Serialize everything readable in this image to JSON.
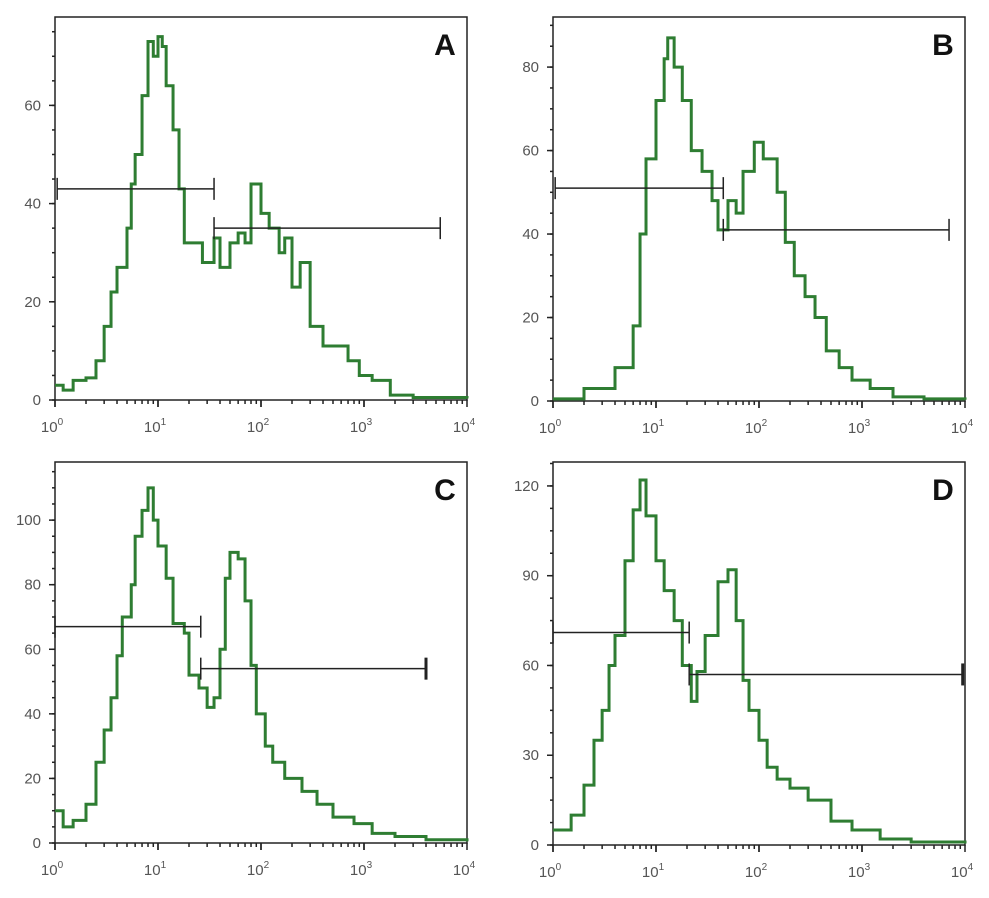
{
  "chart_data": [
    {
      "type": "line",
      "panel_label": "A",
      "x_scale": "log",
      "xlim": [
        1,
        10000
      ],
      "x_ticks": [
        "0",
        "1",
        "2",
        "3",
        "4"
      ],
      "x_tick_base": "10",
      "ylim": [
        0,
        78
      ],
      "y_ticks": [
        0,
        20,
        40,
        60
      ],
      "line_color": "#2e7d32",
      "series": [
        {
          "points": [
            [
              1,
              3
            ],
            [
              1.2,
              2
            ],
            [
              1.5,
              4
            ],
            [
              2,
              4.5
            ],
            [
              2.5,
              8
            ],
            [
              3,
              15
            ],
            [
              3.5,
              22
            ],
            [
              4,
              27
            ],
            [
              5,
              35
            ],
            [
              5.5,
              44
            ],
            [
              6,
              50
            ],
            [
              7,
              62
            ],
            [
              8,
              73
            ],
            [
              9,
              70
            ],
            [
              10,
              74
            ],
            [
              11,
              72
            ],
            [
              12,
              64
            ],
            [
              14,
              55
            ],
            [
              16,
              43
            ],
            [
              18,
              32
            ],
            [
              22,
              32
            ],
            [
              27,
              28
            ],
            [
              35,
              33
            ],
            [
              40,
              27
            ],
            [
              50,
              32
            ],
            [
              60,
              34
            ],
            [
              70,
              32
            ],
            [
              80,
              44
            ],
            [
              100,
              38
            ],
            [
              120,
              35
            ],
            [
              150,
              30
            ],
            [
              170,
              33
            ],
            [
              200,
              23
            ],
            [
              240,
              28
            ],
            [
              300,
              15
            ],
            [
              400,
              11
            ],
            [
              500,
              11
            ],
            [
              700,
              8
            ],
            [
              900,
              5
            ],
            [
              1200,
              4
            ],
            [
              1800,
              1
            ],
            [
              3000,
              0.5
            ],
            [
              10000,
              0.3
            ]
          ]
        }
      ],
      "gates": [
        {
          "x": [
            1.05,
            35
          ],
          "y": 43
        },
        {
          "x": [
            35,
            5500
          ],
          "y": 35
        }
      ]
    },
    {
      "type": "line",
      "panel_label": "B",
      "x_scale": "log",
      "xlim": [
        1,
        10000
      ],
      "x_ticks": [
        "0",
        "1",
        "2",
        "3",
        "4"
      ],
      "x_tick_base": "10",
      "ylim": [
        0,
        92
      ],
      "y_ticks": [
        0,
        20,
        40,
        60,
        80
      ],
      "line_color": "#2e7d32",
      "series": [
        {
          "points": [
            [
              1,
              0.5
            ],
            [
              2,
              3
            ],
            [
              4,
              8
            ],
            [
              6,
              18
            ],
            [
              7,
              40
            ],
            [
              8,
              58
            ],
            [
              10,
              72
            ],
            [
              12,
              82
            ],
            [
              13,
              87
            ],
            [
              15,
              80
            ],
            [
              18,
              72
            ],
            [
              22,
              60
            ],
            [
              28,
              55
            ],
            [
              35,
              48
            ],
            [
              40,
              41
            ],
            [
              50,
              48
            ],
            [
              60,
              45
            ],
            [
              70,
              55
            ],
            [
              90,
              62
            ],
            [
              110,
              58
            ],
            [
              150,
              50
            ],
            [
              180,
              38
            ],
            [
              220,
              30
            ],
            [
              280,
              25
            ],
            [
              350,
              20
            ],
            [
              450,
              12
            ],
            [
              600,
              8
            ],
            [
              800,
              5
            ],
            [
              1200,
              3
            ],
            [
              2000,
              1
            ],
            [
              4000,
              0.5
            ],
            [
              10000,
              0.3
            ]
          ]
        }
      ],
      "gates": [
        {
          "x": [
            1.05,
            45
          ],
          "y": 51
        },
        {
          "x": [
            45,
            7000
          ],
          "y": 41
        }
      ]
    },
    {
      "type": "line",
      "panel_label": "C",
      "x_scale": "log",
      "xlim": [
        1,
        10000
      ],
      "x_ticks": [
        "0",
        "1",
        "2",
        "3",
        "4"
      ],
      "x_tick_base": "10",
      "ylim": [
        0,
        118
      ],
      "y_ticks": [
        0,
        20,
        40,
        60,
        80,
        100
      ],
      "line_color": "#2e7d32",
      "series": [
        {
          "points": [
            [
              1,
              10
            ],
            [
              1.2,
              5
            ],
            [
              1.5,
              7
            ],
            [
              2,
              12
            ],
            [
              2.5,
              25
            ],
            [
              3,
              35
            ],
            [
              3.5,
              45
            ],
            [
              4,
              58
            ],
            [
              4.5,
              70
            ],
            [
              5.5,
              80
            ],
            [
              6,
              95
            ],
            [
              7,
              103
            ],
            [
              8,
              110
            ],
            [
              9,
              100
            ],
            [
              10,
              92
            ],
            [
              12,
              82
            ],
            [
              14,
              68
            ],
            [
              18,
              65
            ],
            [
              20,
              52
            ],
            [
              25,
              48
            ],
            [
              30,
              42
            ],
            [
              35,
              45
            ],
            [
              40,
              60
            ],
            [
              45,
              82
            ],
            [
              50,
              90
            ],
            [
              60,
              88
            ],
            [
              70,
              75
            ],
            [
              80,
              55
            ],
            [
              90,
              40
            ],
            [
              110,
              30
            ],
            [
              130,
              25
            ],
            [
              170,
              20
            ],
            [
              250,
              16
            ],
            [
              350,
              12
            ],
            [
              500,
              8
            ],
            [
              800,
              6
            ],
            [
              1200,
              3
            ],
            [
              2000,
              2
            ],
            [
              4000,
              1
            ],
            [
              10000,
              0.5
            ]
          ]
        }
      ],
      "gates": [
        {
          "x": [
            1,
            26
          ],
          "y": 67
        },
        {
          "x": [
            26,
            4000
          ],
          "y": 54
        }
      ]
    },
    {
      "type": "line",
      "panel_label": "D",
      "x_scale": "log",
      "xlim": [
        1,
        10000
      ],
      "x_ticks": [
        "0",
        "1",
        "2",
        "3",
        "4"
      ],
      "x_tick_base": "10",
      "ylim": [
        0,
        128
      ],
      "y_ticks": [
        0,
        30,
        60,
        90,
        120
      ],
      "line_color": "#2e7d32",
      "series": [
        {
          "points": [
            [
              1,
              5
            ],
            [
              1.5,
              10
            ],
            [
              2,
              20
            ],
            [
              2.5,
              35
            ],
            [
              3,
              45
            ],
            [
              3.5,
              60
            ],
            [
              4,
              70
            ],
            [
              5,
              95
            ],
            [
              6,
              112
            ],
            [
              7,
              122
            ],
            [
              8,
              110
            ],
            [
              10,
              95
            ],
            [
              12,
              85
            ],
            [
              15,
              75
            ],
            [
              18,
              60
            ],
            [
              22,
              48
            ],
            [
              25,
              58
            ],
            [
              30,
              70
            ],
            [
              40,
              88
            ],
            [
              50,
              92
            ],
            [
              60,
              75
            ],
            [
              70,
              55
            ],
            [
              80,
              45
            ],
            [
              100,
              35
            ],
            [
              120,
              26
            ],
            [
              150,
              22
            ],
            [
              200,
              19
            ],
            [
              300,
              15
            ],
            [
              500,
              8
            ],
            [
              800,
              5
            ],
            [
              1500,
              2
            ],
            [
              3000,
              1
            ],
            [
              10000,
              0.5
            ]
          ]
        }
      ],
      "gates": [
        {
          "x": [
            1,
            21
          ],
          "y": 71
        },
        {
          "x": [
            21,
            9500
          ],
          "y": 57
        }
      ]
    }
  ]
}
